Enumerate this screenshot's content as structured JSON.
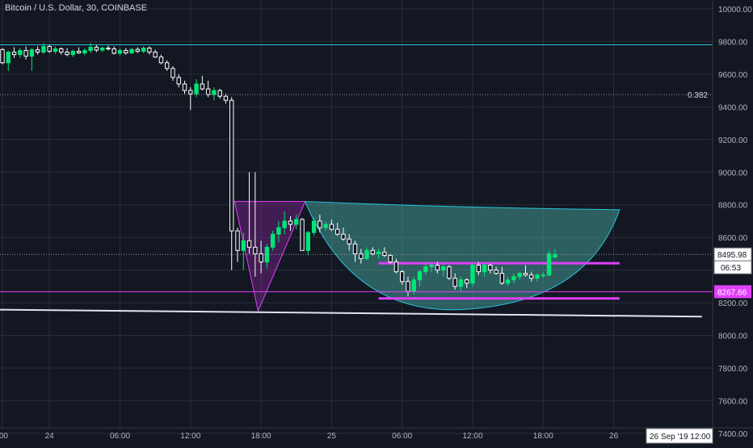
{
  "title": "Bitcoin / U.S. Dollar, 30, COINBASE",
  "chart_data": {
    "type": "candlestick",
    "y_ticks": [
      "10000.00",
      "9800.00",
      "9600.00",
      "9400.00",
      "9200.00",
      "9000.00",
      "8800.00",
      "8600.00",
      "8400.00",
      "8200.00",
      "8000.00",
      "7800.00",
      "7600.00",
      "7400.00"
    ],
    "ylim": [
      7350,
      10080
    ],
    "x_labels": [
      {
        "label": ":00",
        "t": 0
      },
      {
        "label": "24",
        "t": 8
      },
      {
        "label": "06:00",
        "t": 20
      },
      {
        "label": "12:00",
        "t": 32
      },
      {
        "label": "18:00",
        "t": 44
      },
      {
        "label": "25",
        "t": 56
      },
      {
        "label": "06:00",
        "t": 68
      },
      {
        "label": "12:00",
        "t": 80
      },
      {
        "label": "18:00",
        "t": 92
      },
      {
        "label": "26",
        "t": 104
      }
    ],
    "x_range": [
      0,
      119
    ],
    "candles": [
      [
        9751,
        9760,
        9660,
        9670
      ],
      [
        9670,
        9745,
        9620,
        9735
      ],
      [
        9735,
        9765,
        9700,
        9720
      ],
      [
        9720,
        9760,
        9700,
        9745
      ],
      [
        9745,
        9770,
        9690,
        9710
      ],
      [
        9710,
        9760,
        9620,
        9750
      ],
      [
        9750,
        9770,
        9720,
        9735
      ],
      [
        9735,
        9790,
        9725,
        9770
      ],
      [
        9770,
        9780,
        9730,
        9740
      ],
      [
        9740,
        9770,
        9725,
        9755
      ],
      [
        9755,
        9765,
        9720,
        9735
      ],
      [
        9735,
        9760,
        9710,
        9720
      ],
      [
        9720,
        9750,
        9705,
        9740
      ],
      [
        9740,
        9765,
        9725,
        9730
      ],
      [
        9730,
        9760,
        9715,
        9745
      ],
      [
        9745,
        9790,
        9730,
        9765
      ],
      [
        9765,
        9780,
        9735,
        9748
      ],
      [
        9748,
        9770,
        9735,
        9760
      ],
      [
        9760,
        9775,
        9745,
        9755
      ],
      [
        9755,
        9770,
        9720,
        9728
      ],
      [
        9728,
        9760,
        9715,
        9745
      ],
      [
        9745,
        9760,
        9720,
        9730
      ],
      [
        9730,
        9760,
        9725,
        9752
      ],
      [
        9752,
        9765,
        9730,
        9740
      ],
      [
        9740,
        9770,
        9730,
        9760
      ],
      [
        9760,
        9770,
        9720,
        9735
      ],
      [
        9735,
        9750,
        9700,
        9705
      ],
      [
        9705,
        9720,
        9660,
        9670
      ],
      [
        9670,
        9685,
        9620,
        9635
      ],
      [
        9635,
        9650,
        9560,
        9580
      ],
      [
        9580,
        9600,
        9520,
        9540
      ],
      [
        9540,
        9560,
        9480,
        9500
      ],
      [
        9500,
        9520,
        9380,
        9480
      ],
      [
        9480,
        9570,
        9460,
        9540
      ],
      [
        9540,
        9590,
        9500,
        9510
      ],
      [
        9510,
        9560,
        9460,
        9475
      ],
      [
        9475,
        9520,
        9440,
        9500
      ],
      [
        9500,
        9510,
        9450,
        9465
      ],
      [
        9465,
        9480,
        9420,
        9440
      ],
      [
        9440,
        9460,
        8400,
        8640
      ],
      [
        8640,
        8660,
        8450,
        8520
      ],
      [
        8520,
        8630,
        8400,
        8580
      ],
      [
        8580,
        9000,
        8500,
        8540
      ],
      [
        8540,
        9000,
        8360,
        8500
      ],
      [
        8500,
        8580,
        8380,
        8450
      ],
      [
        8450,
        8560,
        8410,
        8540
      ],
      [
        8540,
        8640,
        8520,
        8620
      ],
      [
        8620,
        8700,
        8570,
        8660
      ],
      [
        8660,
        8760,
        8620,
        8700
      ],
      [
        8700,
        8730,
        8640,
        8680
      ],
      [
        8680,
        8740,
        8650,
        8710
      ],
      [
        8710,
        8720,
        8520,
        8520
      ],
      [
        8520,
        8640,
        8490,
        8630
      ],
      [
        8630,
        8720,
        8610,
        8700
      ],
      [
        8700,
        8740,
        8630,
        8660
      ],
      [
        8660,
        8700,
        8640,
        8680
      ],
      [
        8680,
        8710,
        8640,
        8650
      ],
      [
        8650,
        8690,
        8610,
        8620
      ],
      [
        8620,
        8660,
        8580,
        8590
      ],
      [
        8590,
        8620,
        8520,
        8560
      ],
      [
        8560,
        8580,
        8450,
        8500
      ],
      [
        8500,
        8530,
        8440,
        8470
      ],
      [
        8470,
        8540,
        8460,
        8520
      ],
      [
        8520,
        8540,
        8490,
        8500
      ],
      [
        8500,
        8530,
        8470,
        8510
      ],
      [
        8510,
        8540,
        8480,
        8490
      ],
      [
        8490,
        8500,
        8440,
        8450
      ],
      [
        8450,
        8470,
        8380,
        8390
      ],
      [
        8390,
        8400,
        8310,
        8330
      ],
      [
        8330,
        8360,
        8240,
        8270
      ],
      [
        8270,
        8360,
        8250,
        8340
      ],
      [
        8340,
        8400,
        8300,
        8390
      ],
      [
        8390,
        8440,
        8370,
        8420
      ],
      [
        8420,
        8450,
        8390,
        8430
      ],
      [
        8430,
        8450,
        8380,
        8400
      ],
      [
        8400,
        8440,
        8360,
        8420
      ],
      [
        8420,
        8430,
        8340,
        8350
      ],
      [
        8350,
        8380,
        8280,
        8300
      ],
      [
        8300,
        8360,
        8270,
        8340
      ],
      [
        8340,
        8350,
        8290,
        8320
      ],
      [
        8320,
        8440,
        8300,
        8430
      ],
      [
        8430,
        8450,
        8370,
        8390
      ],
      [
        8390,
        8440,
        8360,
        8430
      ],
      [
        8430,
        8440,
        8380,
        8400
      ],
      [
        8400,
        8420,
        8370,
        8380
      ],
      [
        8380,
        8420,
        8310,
        8320
      ],
      [
        8320,
        8360,
        8300,
        8340
      ],
      [
        8340,
        8380,
        8320,
        8360
      ],
      [
        8360,
        8390,
        8340,
        8380
      ],
      [
        8380,
        8430,
        8360,
        8370
      ],
      [
        8370,
        8390,
        8330,
        8350
      ],
      [
        8350,
        8380,
        8330,
        8370
      ],
      [
        8370,
        8390,
        8350,
        8370
      ],
      [
        8370,
        8520,
        8360,
        8500
      ],
      [
        8480,
        8530,
        8470,
        8496
      ]
    ],
    "price_lines": [
      {
        "value": 9780,
        "label": "",
        "color": "#26c6da",
        "style": "solid"
      },
      {
        "value": 9475,
        "label": "0.382",
        "color": "#9598a1",
        "style": "dotted"
      },
      {
        "value": 8495.98,
        "label": "8495.98",
        "color": "#9598a1",
        "style": "dotted"
      },
      {
        "value": 8267.66,
        "label": "8267.66",
        "color": "#e040fb",
        "style": "solid"
      }
    ],
    "countdown": "06:53",
    "trendline": {
      "from": {
        "t": -2,
        "v": 8158
      },
      "to": {
        "t": 119,
        "v": 8115
      },
      "color": "#e0e3eb"
    },
    "support_lines": [
      {
        "from": {
          "t": 64,
          "v": 8442
        },
        "to": {
          "t": 105,
          "v": 8442
        }
      },
      {
        "from": {
          "t": 64,
          "v": 8226
        },
        "to": {
          "t": 105,
          "v": 8226
        }
      }
    ],
    "triangle": [
      {
        "t": 39.5,
        "v": 8820
      },
      {
        "t": 51.5,
        "v": 8820
      },
      {
        "t": 43.5,
        "v": 8150
      }
    ],
    "cup": {
      "start": {
        "t": 51.5,
        "v": 8820
      },
      "bottom": {
        "t": 79,
        "v": 8160
      },
      "end": {
        "t": 105,
        "v": 8770
      }
    },
    "crosshair_time": "26 Sep '19   12:00",
    "colors": {
      "up": "#00e676",
      "down": "#ffffff",
      "grid": "#2a2e39",
      "axis_text": "#b2b5be"
    }
  }
}
